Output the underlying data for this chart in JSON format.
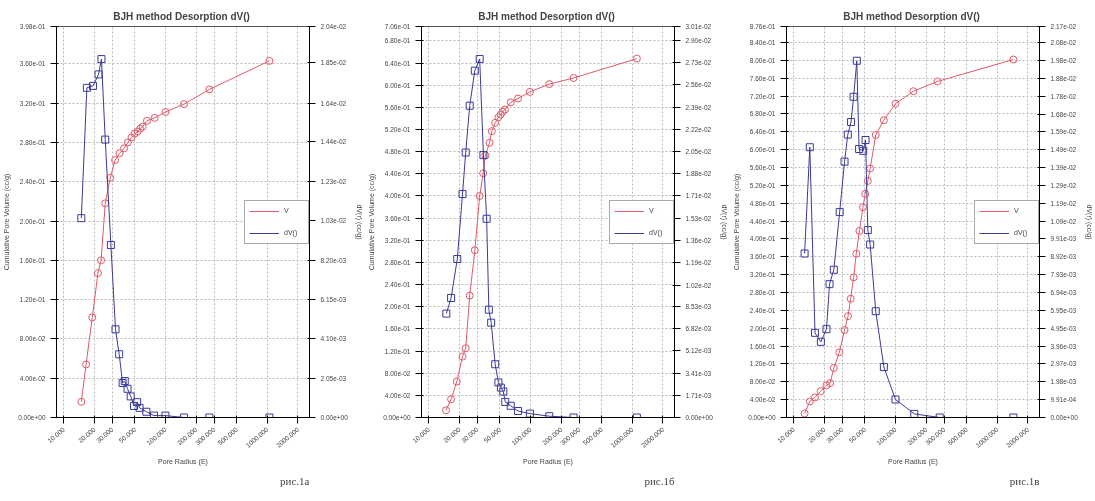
{
  "chart_data": [
    {
      "type": "line",
      "title": "BJH method Desorption  dV()",
      "xlabel": "Pore Radius (E)",
      "ylabel": "Cumulative Pore Volume (cc/g)",
      "y2label": "dV(r) (cc/g)",
      "log": "x",
      "grid": true,
      "legend": "right",
      "annotations": [
        "рис.1а"
      ],
      "xlim": [
        8.5,
        2600
      ],
      "xticks": [
        {
          "value": 10,
          "label": "10.000"
        },
        {
          "value": 20,
          "label": "20.000"
        },
        {
          "value": 30,
          "label": "30.000"
        },
        {
          "value": 50,
          "label": "50.000"
        },
        {
          "value": 100,
          "label": "100.000"
        },
        {
          "value": 200,
          "label": "200.000"
        },
        {
          "value": 300,
          "label": "300.000"
        },
        {
          "value": 500,
          "label": "500.000"
        },
        {
          "value": 1000,
          "label": "1000.000"
        },
        {
          "value": 2000,
          "label": "2000.000"
        }
      ],
      "ylim": [
        0,
        0.398
      ],
      "yticks": [
        {
          "value": 0,
          "label": "0.00e+00"
        },
        {
          "value": 0.04,
          "label": "4.00e-02"
        },
        {
          "value": 0.08,
          "label": "8.00e-02"
        },
        {
          "value": 0.12,
          "label": "1.20e-01"
        },
        {
          "value": 0.16,
          "label": "1.60e-01"
        },
        {
          "value": 0.2,
          "label": "2.00e-01"
        },
        {
          "value": 0.24,
          "label": "2.40e-01"
        },
        {
          "value": 0.28,
          "label": "2.80e-01"
        },
        {
          "value": 0.32,
          "label": "3.20e-01"
        },
        {
          "value": 0.36,
          "label": "3.60e-01"
        },
        {
          "value": 0.398,
          "label": "3.98e-01"
        }
      ],
      "y2lim": [
        0,
        0.0204
      ],
      "y2ticks": [
        {
          "value": 0,
          "label": "0.00e+00"
        },
        {
          "value": 0.00205,
          "label": "2.05e-03"
        },
        {
          "value": 0.0041,
          "label": "4.10e-03"
        },
        {
          "value": 0.00615,
          "label": "6.15e-03"
        },
        {
          "value": 0.0082,
          "label": "8.20e-03"
        },
        {
          "value": 0.0103,
          "label": "1.03e-02"
        },
        {
          "value": 0.0123,
          "label": "1.23e-02"
        },
        {
          "value": 0.0144,
          "label": "1.44e-02"
        },
        {
          "value": 0.0164,
          "label": "1.64e-02"
        },
        {
          "value": 0.0185,
          "label": "1.85e-02"
        },
        {
          "value": 0.0204,
          "label": "2.04e-02"
        }
      ],
      "series": [
        {
          "name": "V",
          "color": "#e05a6a",
          "marker": "circle",
          "line_style": "solid",
          "x": [
            14.9,
            16.6,
            19.1,
            21.7,
            23.3,
            25.6,
            28.7,
            32.0,
            35.4,
            39.2,
            42.7,
            46.4,
            49.7,
            53.3,
            56.4,
            59.6,
            65.8,
            78.3,
            100,
            152,
            270,
            1050
          ],
          "values": [
            0.016,
            0.054,
            0.102,
            0.147,
            0.16,
            0.218,
            0.244,
            0.262,
            0.269,
            0.274,
            0.28,
            0.285,
            0.289,
            0.291,
            0.294,
            0.296,
            0.302,
            0.305,
            0.311,
            0.319,
            0.334,
            0.363
          ]
        },
        {
          "name": "dV()",
          "color": "#3a3a9a",
          "marker": "square",
          "line_style": "solid",
          "axis": "y2",
          "x": [
            14.9,
            16.9,
            19.4,
            22.0,
            23.5,
            25.6,
            29.1,
            32.3,
            35.1,
            37.9,
            39.8,
            42.4,
            45.5,
            49.1,
            52.7,
            55.7,
            64.9,
            77.2,
            100,
            152,
            270,
            1050
          ],
          "values": [
            0.0104,
            0.0172,
            0.0173,
            0.0179,
            0.0187,
            0.0145,
            0.009,
            0.0046,
            0.0033,
            0.0018,
            0.0019,
            0.0015,
            0.0011,
            0.0006,
            0.0008,
            0.0005,
            0.0003,
            0.0001,
            0.0001,
            0,
            0,
            0
          ]
        }
      ]
    },
    {
      "type": "line",
      "title": "BJH method Desorption  dV()",
      "xlabel": "Pore Radius (E)",
      "ylabel": "Cumulative Pore Volume (cc/g)",
      "y2label": "dV(r) (cc/g)",
      "log": "x",
      "grid": true,
      "legend": "right",
      "annotations": [
        "рис.1б"
      ],
      "xlim": [
        8.5,
        2600
      ],
      "xticks": [
        {
          "value": 10,
          "label": "10.000"
        },
        {
          "value": 20,
          "label": "20.000"
        },
        {
          "value": 30,
          "label": "30.000"
        },
        {
          "value": 50,
          "label": "50.000"
        },
        {
          "value": 100,
          "label": "100.000"
        },
        {
          "value": 200,
          "label": "200.000"
        },
        {
          "value": 300,
          "label": "300.000"
        },
        {
          "value": 500,
          "label": "500.000"
        },
        {
          "value": 1000,
          "label": "1000.000"
        },
        {
          "value": 2000,
          "label": "2000.000"
        }
      ],
      "ylim": [
        0,
        0.706
      ],
      "yticks": [
        {
          "value": 0,
          "label": "0.00e+00"
        },
        {
          "value": 0.04,
          "label": "4.00e-02"
        },
        {
          "value": 0.08,
          "label": "8.00e-02"
        },
        {
          "value": 0.12,
          "label": "1.20e-01"
        },
        {
          "value": 0.16,
          "label": "1.60e-01"
        },
        {
          "value": 0.2,
          "label": "2.00e-01"
        },
        {
          "value": 0.24,
          "label": "2.40e-01"
        },
        {
          "value": 0.28,
          "label": "2.80e-01"
        },
        {
          "value": 0.32,
          "label": "3.20e-01"
        },
        {
          "value": 0.36,
          "label": "3.60e-01"
        },
        {
          "value": 0.4,
          "label": "4.00e-01"
        },
        {
          "value": 0.44,
          "label": "4.40e-01"
        },
        {
          "value": 0.48,
          "label": "4.80e-01"
        },
        {
          "value": 0.52,
          "label": "5.20e-01"
        },
        {
          "value": 0.56,
          "label": "5.60e-01"
        },
        {
          "value": 0.6,
          "label": "6.00e-01"
        },
        {
          "value": 0.64,
          "label": "6.40e-01"
        },
        {
          "value": 0.68,
          "label": "6.80e-01"
        },
        {
          "value": 0.706,
          "label": "7.06e-01"
        }
      ],
      "y2lim": [
        0,
        0.0301
      ],
      "y2ticks": [
        {
          "value": 0,
          "label": "0.00e+00"
        },
        {
          "value": 0.00171,
          "label": "1.71e-03"
        },
        {
          "value": 0.00341,
          "label": "3.41e-03"
        },
        {
          "value": 0.00512,
          "label": "5.12e-03"
        },
        {
          "value": 0.00682,
          "label": "6.82e-03"
        },
        {
          "value": 0.00853,
          "label": "8.53e-03"
        },
        {
          "value": 0.0102,
          "label": "1.02e-02"
        },
        {
          "value": 0.0119,
          "label": "1.19e-02"
        },
        {
          "value": 0.0136,
          "label": "1.36e-02"
        },
        {
          "value": 0.0153,
          "label": "1.53e-02"
        },
        {
          "value": 0.0171,
          "label": "1.71e-02"
        },
        {
          "value": 0.0188,
          "label": "1.88e-02"
        },
        {
          "value": 0.0205,
          "label": "2.05e-02"
        },
        {
          "value": 0.0222,
          "label": "2.22e-02"
        },
        {
          "value": 0.0239,
          "label": "2.39e-02"
        },
        {
          "value": 0.0256,
          "label": "2.56e-02"
        },
        {
          "value": 0.0273,
          "label": "2.73e-02"
        },
        {
          "value": 0.029,
          "label": "2.90e-02"
        },
        {
          "value": 0.0301,
          "label": "3.01e-02"
        }
      ],
      "series": [
        {
          "name": "V",
          "color": "#e05a6a",
          "marker": "circle",
          "line_style": "solid",
          "x": [
            14.8,
            16.6,
            18.9,
            21.5,
            23.1,
            25.3,
            28.4,
            31.7,
            34.3,
            36.1,
            39.6,
            41.7,
            45.0,
            48.4,
            50.9,
            53.3,
            56.2,
            64.0,
            75.5,
            98.7,
            153,
            265,
            1110
          ],
          "values": [
            0.013,
            0.033,
            0.065,
            0.11,
            0.125,
            0.22,
            0.302,
            0.4,
            0.441,
            0.473,
            0.496,
            0.517,
            0.532,
            0.542,
            0.547,
            0.552,
            0.556,
            0.569,
            0.576,
            0.588,
            0.602,
            0.613,
            0.648
          ]
        },
        {
          "name": "dV()",
          "color": "#3a3a9a",
          "marker": "square",
          "line_style": "solid",
          "axis": "y2",
          "x": [
            14.9,
            16.6,
            19.1,
            21.5,
            23.1,
            25.3,
            28.4,
            31.7,
            34.5,
            37.1,
            39.0,
            41.1,
            45.0,
            48.4,
            51.2,
            54.1,
            56.5,
            64.0,
            75.5,
            98.7,
            153,
            265,
            1110
          ],
          "values": [
            0.008,
            0.0092,
            0.0122,
            0.0172,
            0.0204,
            0.024,
            0.0267,
            0.0276,
            0.0202,
            0.0153,
            0.0083,
            0.0073,
            0.0041,
            0.0027,
            0.0023,
            0.002,
            0.0012,
            0.0009,
            0.0005,
            0.0003,
            0.0001,
            0,
            0
          ]
        }
      ]
    },
    {
      "type": "line",
      "title": "BJH method Desorption  dV()",
      "xlabel": "Pore Radius (E)",
      "ylabel": "Cumulative Pore Volume (cc/g)",
      "y2label": "dV(r) (cc/g)",
      "log": "x",
      "grid": true,
      "legend": "right",
      "annotations": [
        "рис.1в"
      ],
      "xlim": [
        8.5,
        2600
      ],
      "xticks": [
        {
          "value": 10,
          "label": "10.000"
        },
        {
          "value": 20,
          "label": "20.000"
        },
        {
          "value": 30,
          "label": "30.000"
        },
        {
          "value": 50,
          "label": "50.000"
        },
        {
          "value": 100,
          "label": "100.000"
        },
        {
          "value": 200,
          "label": "200.000"
        },
        {
          "value": 300,
          "label": "300.000"
        },
        {
          "value": 500,
          "label": "500.000"
        },
        {
          "value": 1000,
          "label": "1000.000"
        },
        {
          "value": 2000,
          "label": "2000.000"
        }
      ],
      "ylim": [
        0,
        0.876
      ],
      "yticks": [
        {
          "value": 0,
          "label": "0.00e+00"
        },
        {
          "value": 0.04,
          "label": "4.00e-02"
        },
        {
          "value": 0.08,
          "label": "8.00e-02"
        },
        {
          "value": 0.12,
          "label": "1.20e-01"
        },
        {
          "value": 0.16,
          "label": "1.60e-01"
        },
        {
          "value": 0.2,
          "label": "2.00e-01"
        },
        {
          "value": 0.24,
          "label": "2.40e-01"
        },
        {
          "value": 0.28,
          "label": "2.80e-01"
        },
        {
          "value": 0.32,
          "label": "3.20e-01"
        },
        {
          "value": 0.36,
          "label": "3.60e-01"
        },
        {
          "value": 0.4,
          "label": "4.00e-01"
        },
        {
          "value": 0.44,
          "label": "4.40e-01"
        },
        {
          "value": 0.48,
          "label": "4.80e-01"
        },
        {
          "value": 0.52,
          "label": "5.20e-01"
        },
        {
          "value": 0.56,
          "label": "5.60e-01"
        },
        {
          "value": 0.6,
          "label": "6.00e-01"
        },
        {
          "value": 0.64,
          "label": "6.40e-01"
        },
        {
          "value": 0.68,
          "label": "6.80e-01"
        },
        {
          "value": 0.72,
          "label": "7.20e-01"
        },
        {
          "value": 0.76,
          "label": "7.60e-01"
        },
        {
          "value": 0.8,
          "label": "8.00e-01"
        },
        {
          "value": 0.84,
          "label": "8.40e-01"
        },
        {
          "value": 0.876,
          "label": "8.76e-01"
        }
      ],
      "y2lim": [
        0,
        0.0217
      ],
      "y2ticks": [
        {
          "value": 0,
          "label": "0.00e+00"
        },
        {
          "value": 0.000991,
          "label": "9.91e-04"
        },
        {
          "value": 0.00198,
          "label": "1.98e-03"
        },
        {
          "value": 0.00297,
          "label": "2.97e-03"
        },
        {
          "value": 0.00396,
          "label": "3.96e-03"
        },
        {
          "value": 0.00495,
          "label": "4.95e-03"
        },
        {
          "value": 0.00595,
          "label": "5.95e-03"
        },
        {
          "value": 0.00694,
          "label": "6.94e-03"
        },
        {
          "value": 0.00793,
          "label": "7.93e-03"
        },
        {
          "value": 0.00892,
          "label": "8.92e-03"
        },
        {
          "value": 0.00991,
          "label": "9.91e-03"
        },
        {
          "value": 0.0109,
          "label": "1.09e-02"
        },
        {
          "value": 0.0119,
          "label": "1.19e-02"
        },
        {
          "value": 0.0129,
          "label": "1.29e-02"
        },
        {
          "value": 0.0139,
          "label": "1.39e-02"
        },
        {
          "value": 0.0149,
          "label": "1.49e-02"
        },
        {
          "value": 0.0159,
          "label": "1.59e-02"
        },
        {
          "value": 0.0168,
          "label": "1.68e-02"
        },
        {
          "value": 0.0178,
          "label": "1.78e-02"
        },
        {
          "value": 0.0188,
          "label": "1.88e-02"
        },
        {
          "value": 0.0198,
          "label": "1.98e-02"
        },
        {
          "value": 0.0208,
          "label": "2.08e-02"
        },
        {
          "value": 0.0217,
          "label": "2.17e-02"
        }
      ],
      "series": [
        {
          "name": "V",
          "color": "#e05a6a",
          "marker": "circle",
          "line_style": "solid",
          "x": [
            12.8,
            14.4,
            16.2,
            18.4,
            21.0,
            22.8,
            24.8,
            28.1,
            31.6,
            34.2,
            36.3,
            38.8,
            41.2,
            44.2,
            47.9,
            50.4,
            53.5,
            56.4,
            64.0,
            76.9,
            100,
            150,
            259,
            1440
          ],
          "values": [
            0.009,
            0.036,
            0.045,
            0.059,
            0.072,
            0.077,
            0.111,
            0.146,
            0.196,
            0.227,
            0.266,
            0.314,
            0.367,
            0.418,
            0.471,
            0.501,
            0.53,
            0.558,
            0.633,
            0.666,
            0.703,
            0.731,
            0.753,
            0.802
          ]
        },
        {
          "name": "dV()",
          "color": "#3a3a9a",
          "marker": "square",
          "line_style": "solid",
          "axis": "y2",
          "x": [
            12.8,
            14.4,
            16.2,
            18.5,
            21.0,
            22.5,
            24.8,
            28.3,
            31.6,
            34.0,
            36.6,
            38.8,
            41.7,
            43.9,
            48.2,
            50.8,
            53.5,
            56.4,
            64.0,
            76.9,
            100,
            153,
            272,
            1440
          ],
          "values": [
            0.0091,
            0.015,
            0.0047,
            0.0042,
            0.0049,
            0.0074,
            0.0082,
            0.0114,
            0.0142,
            0.0157,
            0.0164,
            0.0178,
            0.0198,
            0.0149,
            0.0148,
            0.0154,
            0.0104,
            0.0096,
            0.0059,
            0.0028,
            0.001,
            0.0002,
            0,
            0
          ]
        }
      ]
    }
  ]
}
